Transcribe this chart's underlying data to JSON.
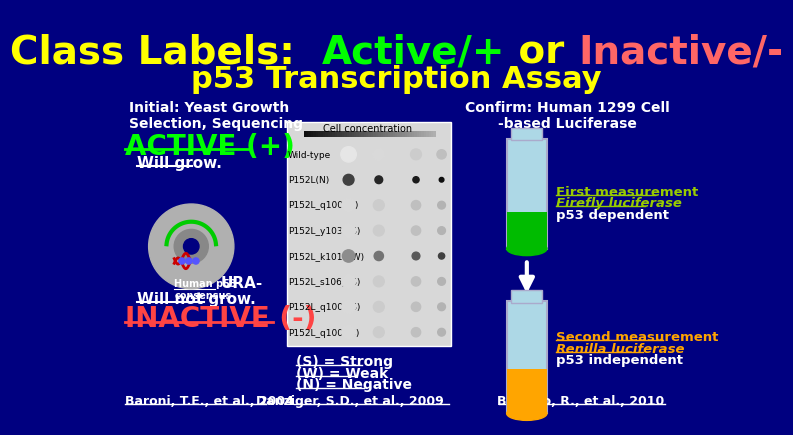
{
  "bg_color": "#000080",
  "title_line1_parts": [
    {
      "text": "Class Labels:  ",
      "color": "#FFFF00"
    },
    {
      "text": "Active/+",
      "color": "#00FF00"
    },
    {
      "text": " or ",
      "color": "#FFFF00"
    },
    {
      "text": "Inactive/-",
      "color": "#FF6666"
    }
  ],
  "title_line2": "p53 Transcription Assay",
  "title_line2_color": "#FFFF00",
  "subtitle_left": "Initial: Yeast Growth\nSelection, Sequencing",
  "subtitle_right": "Confirm: Human 1299 Cell\n-based Luciferase",
  "active_label": "ACTIVE (+)",
  "active_color": "#00FF00",
  "will_grow": "Will grow.",
  "will_not_grow": "Will not grow.",
  "inactive_label": "INACTIVE (-)",
  "inactive_color": "#FF4444",
  "baroni_ref": "Baroni, T.E., et al., 2004",
  "danziger_ref": "Danziger, S.D., et al., 2009",
  "baronio_ref": "Baronio, R., et al., 2010",
  "legend_s": "(S) = Strong",
  "legend_w": "(W) = Weak",
  "legend_n": "(N) = Negative",
  "first_meas_line1": "First measurement",
  "first_meas_line2": "Firefly luciferase",
  "first_meas_line3": "p53 dependent",
  "second_meas_line1": "Second measurement",
  "second_meas_line2": "Renilla luciferase",
  "second_meas_line3": "p53 independent",
  "first_meas_color": "#99CC00",
  "second_meas_color": "#FFA500",
  "tube_light_blue": "#ADD8E6",
  "tube_green": "#00BB00",
  "tube_orange": "#FFA500",
  "human_p53_text": "Human p53\nconsensus",
  "ura_text": "URA-",
  "white_text": "#FFFFFF",
  "yellow_text": "#FFFF00",
  "seg_texts": [
    "Class Labels:  ",
    "Active/+",
    " or ",
    "Inactive/-"
  ],
  "seg_colors": [
    "#FFFF00",
    "#00FF00",
    "#FFFF00",
    "#FF6666"
  ],
  "row_labels": [
    "Wild-type",
    "P152L(N)",
    "P152L_q100i(S)",
    "P152L_y103c(S)",
    "P152L_k101n(W)",
    "P152L_s106p(S)",
    "P152L_q100s(S)",
    "P152L_q100t(S)"
  ]
}
